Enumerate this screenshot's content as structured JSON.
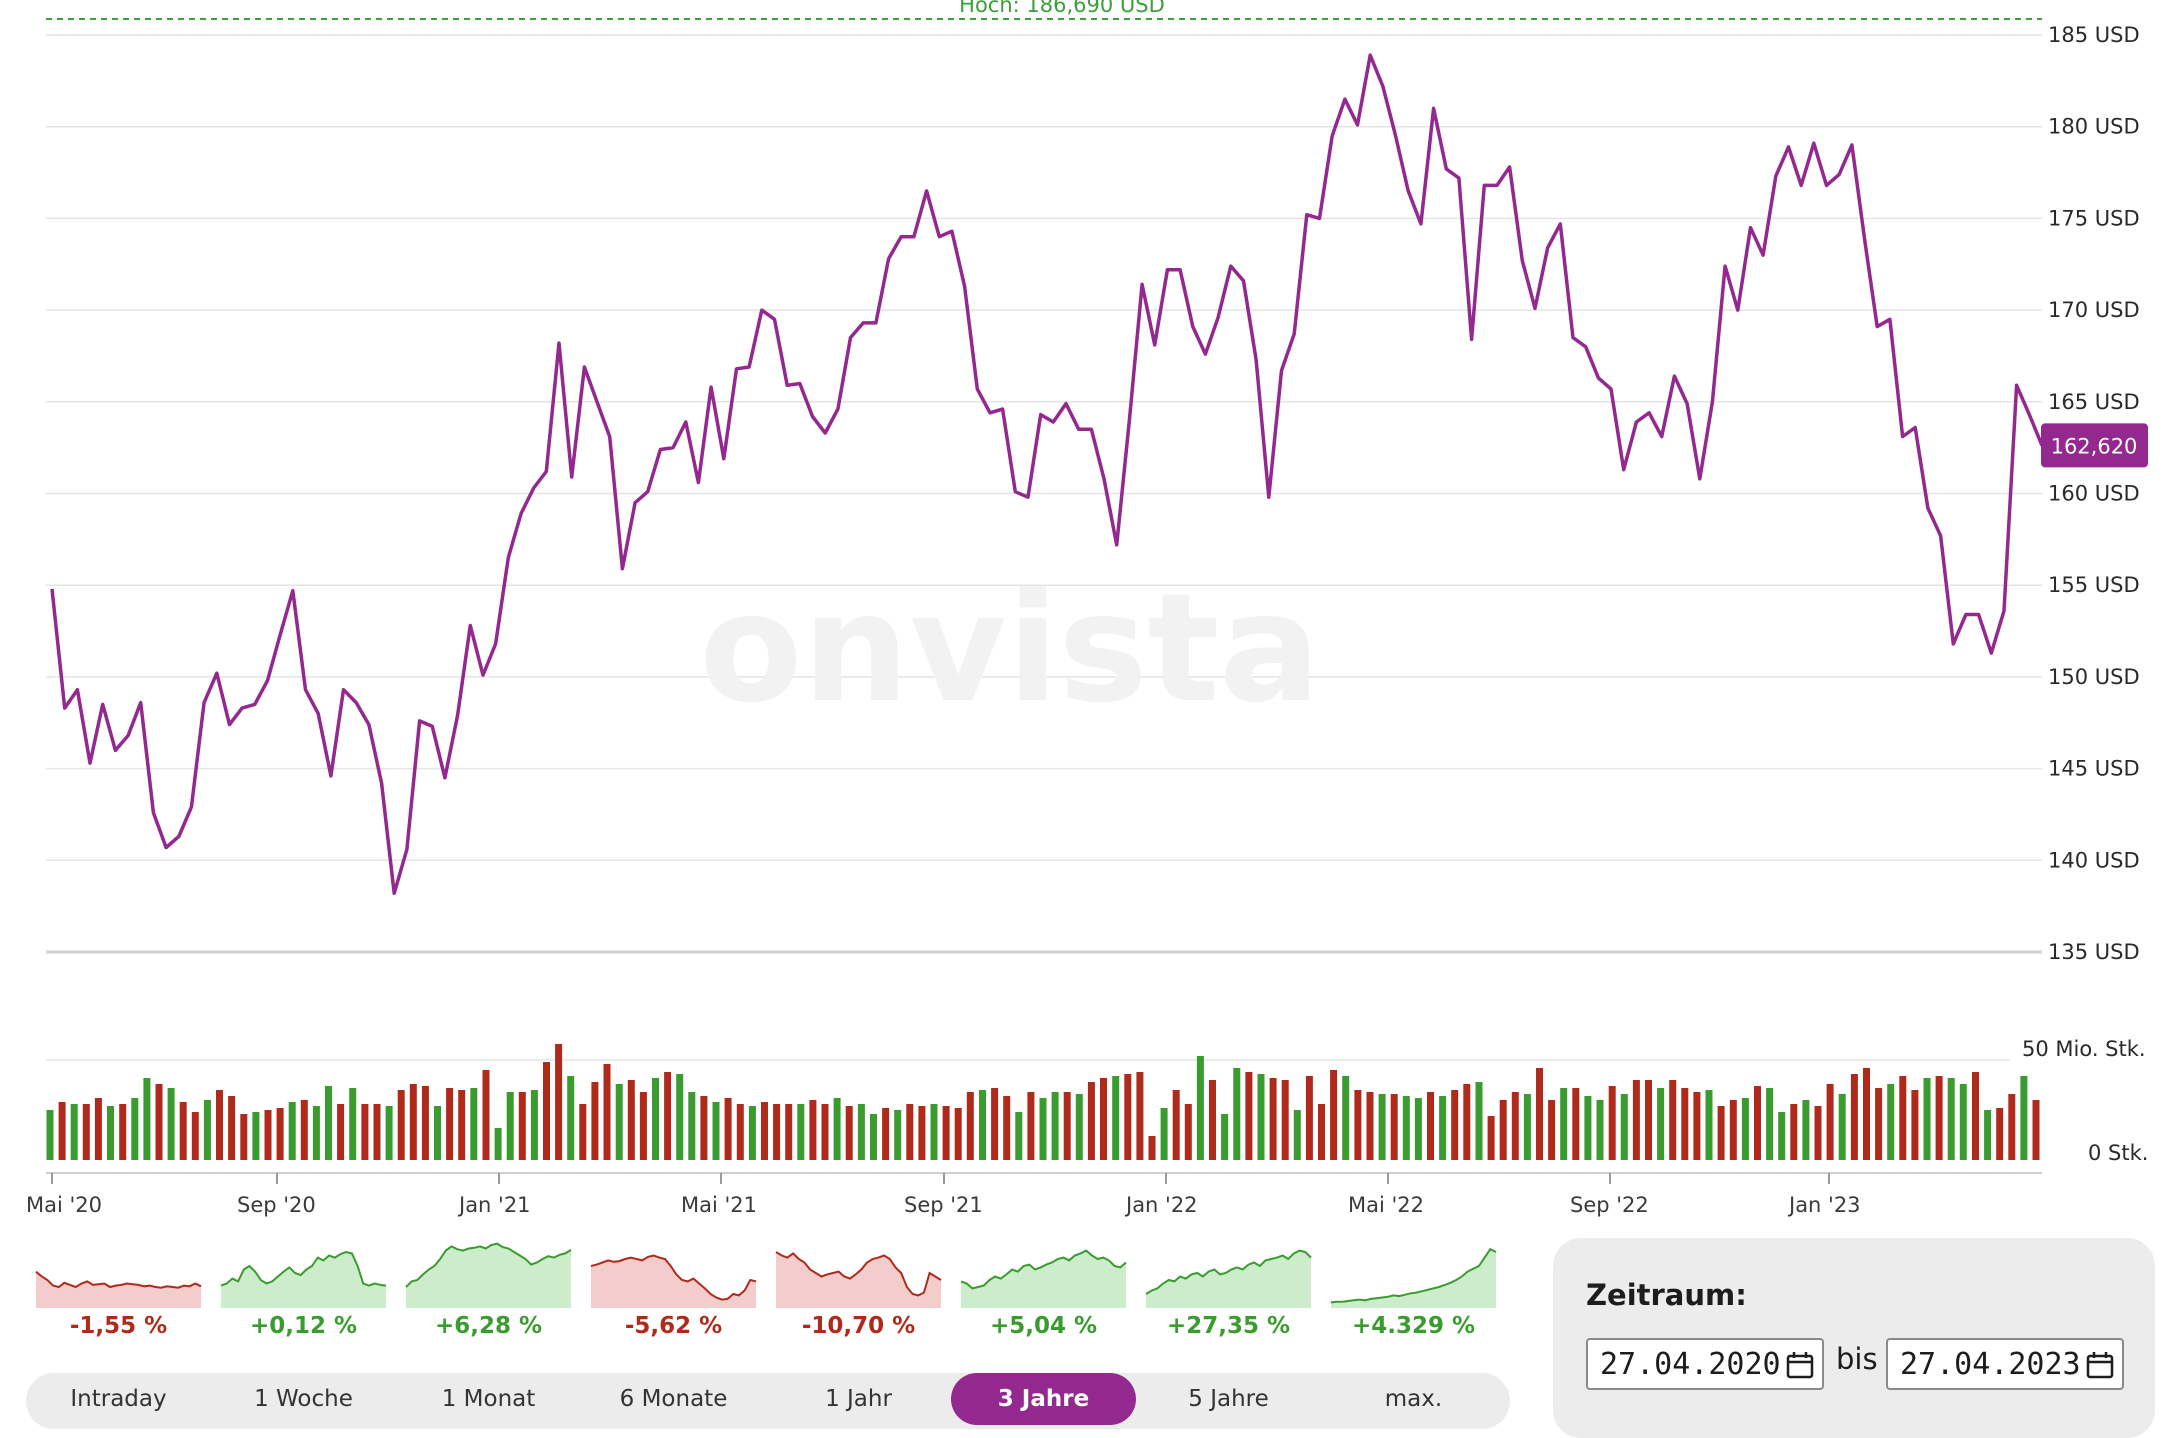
{
  "chart_data": {
    "type": "line",
    "high_label": "Hoch: 186,690 USD",
    "watermark": "onvista",
    "current_value_label": "162,620",
    "y_ticks": [
      "185 USD",
      "180 USD",
      "175 USD",
      "170 USD",
      "165 USD",
      "160 USD",
      "155 USD",
      "150 USD",
      "145 USD",
      "140 USD",
      "135 USD"
    ],
    "y_tick_values": [
      185,
      180,
      175,
      170,
      165,
      160,
      155,
      150,
      145,
      140,
      135
    ],
    "ylim": [
      135,
      186.69
    ],
    "x_ticks": [
      "Mai '20",
      "Sep '20",
      "Jan '21",
      "Mai '21",
      "Sep '21",
      "Jan '22",
      "Mai '22",
      "Sep '22",
      "Jan '23"
    ],
    "series": [
      {
        "values": [
          154.8,
          148.3,
          149.3,
          145.3,
          148.5,
          146,
          146.8,
          148.6,
          142.6,
          140.7,
          141.3,
          142.9,
          148.6,
          150.2,
          147.4,
          148.3,
          148.5,
          149.8,
          152.3,
          154.7,
          149.3,
          148,
          144.6,
          149.3,
          148.6,
          147.4,
          144.2,
          138.2,
          140.6,
          147.6,
          147.3,
          144.5,
          147.9,
          152.8,
          150.1,
          151.8,
          156.5,
          158.9,
          160.3,
          161.2,
          168.2,
          160.9,
          166.9,
          165,
          163.1,
          155.9,
          159.5,
          160.1,
          162.4,
          162.5,
          163.9,
          160.6,
          165.8,
          161.9,
          166.8,
          166.9,
          170,
          169.5,
          165.9,
          166,
          164.2,
          163.3,
          164.6,
          168.5,
          169.3,
          169.3,
          172.8,
          174,
          174,
          176.5,
          174,
          174.3,
          171.3,
          165.7,
          164.4,
          164.6,
          160.1,
          159.8,
          164.3,
          163.9,
          164.9,
          163.5,
          163.5,
          160.8,
          157.2,
          164,
          171.4,
          168.1,
          172.2,
          172.2,
          169.1,
          167.6,
          169.6,
          172.4,
          171.6,
          167.3,
          159.8,
          166.7,
          168.7,
          175.2,
          175,
          179.5,
          181.5,
          180.1,
          183.9,
          182.2,
          179.5,
          176.5,
          174.7,
          181,
          177.7,
          177.2,
          168.4,
          176.8,
          176.8,
          177.8,
          172.7,
          170.1,
          173.4,
          174.7,
          168.5,
          168,
          166.3,
          165.7,
          161.3,
          163.9,
          164.4,
          163.1,
          166.4,
          164.9,
          160.8,
          165,
          172.4,
          170,
          174.5,
          173,
          177.3,
          178.9,
          176.8,
          179.1,
          176.8,
          177.4,
          179,
          173.9,
          169.1,
          169.5,
          163.1,
          163.6,
          159.2,
          157.7,
          151.8,
          153.4,
          153.4,
          151.3,
          153.6,
          165.9,
          164.3,
          162.62
        ]
      }
    ],
    "volume": {
      "labels": [
        "50 Mio. Stk.",
        "0 Stk."
      ],
      "max": 50,
      "values": [
        25,
        29,
        28,
        28,
        31,
        27,
        28,
        31,
        41,
        38,
        36,
        29,
        24,
        30,
        35,
        32,
        23,
        24,
        25,
        26,
        29,
        30,
        27,
        37,
        28,
        36,
        28,
        28,
        27,
        35,
        38,
        37,
        27,
        36,
        35,
        36,
        45,
        16,
        34,
        34,
        35,
        49,
        58,
        42,
        28,
        39,
        48,
        38,
        40,
        34,
        41,
        44,
        43,
        34,
        32,
        29,
        31,
        28,
        27,
        29,
        28,
        28,
        28,
        30,
        28,
        31,
        27,
        28,
        23,
        26,
        25,
        28,
        27,
        28,
        27,
        26,
        34,
        35,
        36,
        32,
        24,
        34,
        31,
        34,
        34,
        33,
        39,
        41,
        42,
        43,
        44,
        12,
        26,
        35,
        28,
        52,
        40,
        23,
        46,
        44,
        43,
        41,
        40,
        25,
        42,
        28,
        45,
        42,
        35,
        34,
        33,
        33,
        32,
        31,
        34,
        32,
        35,
        38,
        39,
        22,
        30,
        34,
        33,
        46,
        30,
        36,
        36,
        32,
        30,
        37,
        33,
        40,
        40,
        36,
        40,
        36,
        34,
        35,
        27,
        30,
        31,
        37,
        36,
        24,
        28,
        30,
        27,
        38,
        33,
        43,
        46,
        36,
        38,
        42,
        35,
        41,
        42,
        41,
        38,
        44,
        25,
        26,
        33,
        42,
        30
      ]
    }
  },
  "minis": [
    {
      "label": "-1,55 %",
      "positive": false,
      "values": [
        52,
        45,
        40,
        32,
        30,
        36,
        33,
        30,
        35,
        38,
        33,
        34,
        35,
        30,
        32,
        33,
        35,
        34,
        33,
        31,
        32,
        30,
        29,
        31,
        30,
        29,
        32,
        31,
        35,
        31
      ]
    },
    {
      "label": "+0,12 %",
      "positive": true,
      "values": [
        32,
        35,
        42,
        38,
        55,
        60,
        52,
        40,
        35,
        38,
        45,
        52,
        58,
        50,
        47,
        55,
        60,
        72,
        68,
        75,
        72,
        77,
        80,
        78,
        60,
        35,
        32,
        35,
        33,
        32
      ]
    },
    {
      "label": "+6,28 %",
      "positive": true,
      "values": [
        30,
        38,
        40,
        48,
        55,
        60,
        70,
        82,
        88,
        84,
        82,
        85,
        86,
        88,
        85,
        90,
        92,
        87,
        85,
        80,
        75,
        70,
        62,
        65,
        70,
        74,
        72,
        76,
        78,
        83
      ]
    },
    {
      "label": "-5,62 %",
      "positive": false,
      "values": [
        60,
        62,
        65,
        68,
        66,
        67,
        70,
        72,
        70,
        68,
        73,
        75,
        72,
        70,
        60,
        48,
        40,
        38,
        42,
        35,
        28,
        20,
        15,
        12,
        13,
        20,
        18,
        25,
        40,
        38
      ]
    },
    {
      "label": "-10,70 %",
      "positive": false,
      "values": [
        80,
        75,
        72,
        78,
        70,
        65,
        55,
        50,
        45,
        48,
        50,
        52,
        45,
        42,
        48,
        55,
        65,
        70,
        72,
        75,
        70,
        58,
        50,
        30,
        20,
        18,
        22,
        50,
        45,
        40
      ]
    },
    {
      "label": "+5,04 %",
      "positive": true,
      "values": [
        38,
        35,
        28,
        30,
        32,
        40,
        45,
        42,
        48,
        55,
        52,
        60,
        62,
        55,
        58,
        62,
        65,
        70,
        72,
        68,
        75,
        78,
        82,
        75,
        70,
        72,
        68,
        60,
        58,
        65
      ]
    },
    {
      "label": "+27,35 %",
      "positive": true,
      "values": [
        20,
        25,
        28,
        35,
        40,
        38,
        45,
        42,
        48,
        50,
        45,
        52,
        55,
        48,
        50,
        55,
        58,
        55,
        62,
        65,
        60,
        68,
        70,
        72,
        75,
        70,
        78,
        82,
        80,
        72
      ]
    },
    {
      "label": "+4.329 %",
      "positive": true,
      "values": [
        8,
        9,
        9,
        10,
        11,
        12,
        11,
        13,
        14,
        15,
        16,
        18,
        17,
        19,
        21,
        22,
        24,
        26,
        28,
        30,
        33,
        36,
        40,
        45,
        52,
        56,
        60,
        72,
        84,
        80
      ]
    }
  ],
  "tabs": [
    "Intraday",
    "1 Woche",
    "1 Monat",
    "6 Monate",
    "1 Jahr",
    "3 Jahre",
    "5 Jahre",
    "max."
  ],
  "active_tab": "3 Jahre",
  "zeitraum": {
    "title": "Zeitraum:",
    "from": "27.04.2020",
    "separator": "bis",
    "to": "27.04.2023"
  },
  "colors": {
    "line": "#93298e",
    "up": "#3a9c2e",
    "down": "#b02a1c",
    "high_line": "#3aa03a"
  }
}
